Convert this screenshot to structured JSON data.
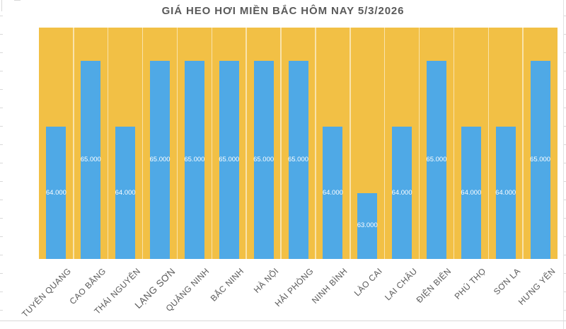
{
  "page": {
    "title": "GIÁ HEO HƠI MIỀN BẮC HÔM NAY 5/3/2026"
  },
  "chart_data": {
    "type": "bar",
    "title": "GIÁ HEO HƠI MIỀN BẮC HÔM NAY 5/3/2026",
    "categories": [
      "TUYÊN QUANG",
      "CAO BẰNG",
      "THÁI NGUYÊN",
      "LẠNG SƠN",
      "QUẢNG NINH",
      "BẮC NINH",
      "HÀ NỘI",
      "HẢI PHÒNG",
      "NINH BÌNH",
      "LÀO CAI",
      "LAI CHÂU",
      "ĐIỆN BIÊN",
      "PHÚ THỌ",
      "SƠN LA",
      "HƯNG YÊN"
    ],
    "values": [
      64000,
      65000,
      64000,
      65000,
      65000,
      65000,
      65000,
      65000,
      64000,
      63000,
      64000,
      65000,
      64000,
      64000,
      65000
    ],
    "value_labels": [
      "64.000",
      "65.000",
      "64.000",
      "65.000",
      "65.000",
      "65.000",
      "65.000",
      "65.000",
      "64.000",
      "63.000",
      "64.000",
      "65.000",
      "64.000",
      "64.000",
      "65.000"
    ],
    "xlabel": "",
    "ylabel": "",
    "ylim": [
      62000,
      65500
    ],
    "grid": "vertical category band separators, no axis lines, no y tick labels",
    "legend": "none",
    "value_label_position": "inside center",
    "colors": {
      "bar": "#4FA9E6",
      "plot_background": "#F2C045",
      "title_text": "#595959",
      "axis_label_text": "#595959",
      "value_label_text": "#FFFFFF",
      "band_separator": "#F7E3A9",
      "sheet_gridline": "#D9D9D9"
    }
  }
}
